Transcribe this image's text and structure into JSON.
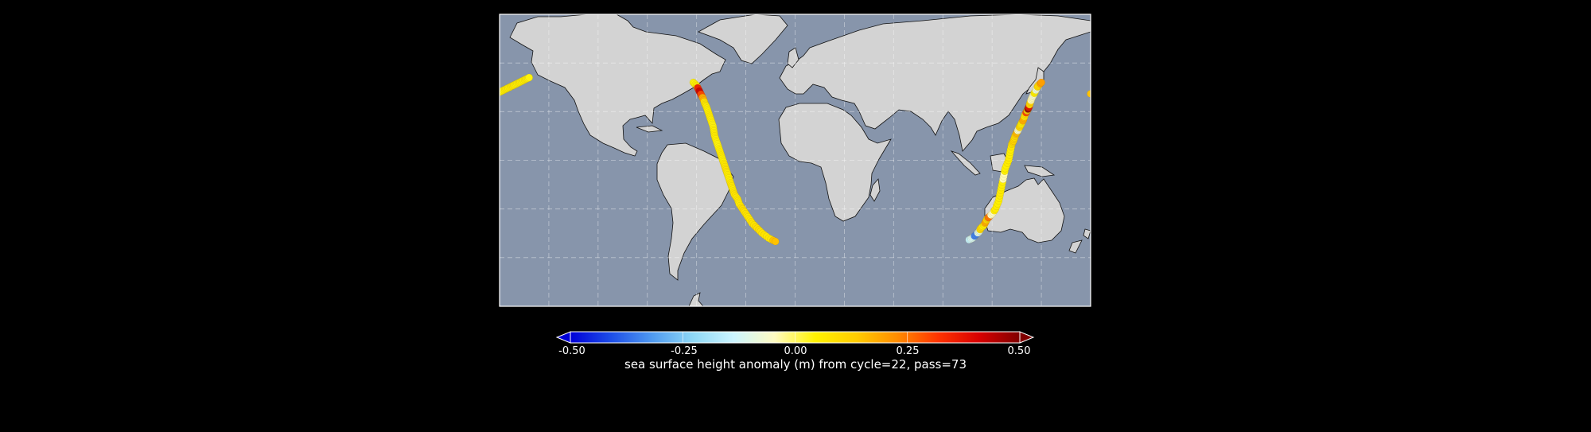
{
  "map": {
    "projection": "equirectangular",
    "ocean_color": "#8795ab",
    "land_color": "#d3d3d3",
    "coast_color": "#111111",
    "graticule": "dashed",
    "frame_color": "#ffffff"
  },
  "tracks": [
    {
      "points": [
        [
          -180,
          42,
          0.05
        ],
        [
          -178,
          43,
          0.05
        ],
        [
          -176,
          44,
          0.06
        ],
        [
          -174,
          45,
          0.05
        ],
        [
          -172,
          46,
          0.07
        ],
        [
          -170,
          47,
          0.05
        ],
        [
          -168,
          48,
          0.06
        ],
        [
          -166,
          49,
          0.05
        ],
        [
          -164,
          50,
          0.06
        ],
        [
          -162,
          51,
          0.04
        ]
      ]
    },
    {
      "points": [
        [
          -62,
          48,
          0.04
        ],
        [
          -60,
          46,
          0.05
        ],
        [
          -59,
          44,
          0.35
        ],
        [
          -58,
          42,
          0.42
        ],
        [
          -57,
          40,
          0.3
        ],
        [
          -56,
          38,
          0.18
        ],
        [
          -55,
          35,
          0.08
        ],
        [
          -54,
          33,
          0.06
        ],
        [
          -53,
          30,
          0.05
        ],
        [
          -52,
          27,
          0.06
        ],
        [
          -51,
          24,
          0.05
        ],
        [
          -50,
          21,
          0.04
        ],
        [
          -49.5,
          18,
          0.05
        ],
        [
          -49,
          15,
          0.06
        ],
        [
          -48,
          12,
          0.05
        ],
        [
          -47,
          9,
          0.04
        ],
        [
          -46,
          6,
          0.05
        ],
        [
          -45,
          3,
          0.06
        ],
        [
          -44,
          0,
          0.05
        ],
        [
          -43,
          -3,
          0.07
        ],
        [
          -42,
          -6,
          0.08
        ],
        [
          -41,
          -9,
          0.06
        ],
        [
          -40,
          -12,
          0.05
        ],
        [
          -39,
          -15,
          0.07
        ],
        [
          -38,
          -18,
          0.06
        ],
        [
          -37,
          -21,
          0.08
        ],
        [
          -35,
          -24,
          0.07
        ],
        [
          -34,
          -27,
          0.06
        ],
        [
          -32,
          -30,
          0.09
        ],
        [
          -30,
          -33,
          0.08
        ],
        [
          -28,
          -36,
          0.07
        ],
        [
          -26,
          -39,
          0.08
        ],
        [
          -23,
          -42,
          0.09
        ],
        [
          -20,
          -45,
          0.08
        ],
        [
          -16,
          -48,
          0.07
        ],
        [
          -12,
          -50,
          0.15
        ]
      ]
    },
    {
      "points": [
        [
          106,
          -49,
          -0.15
        ],
        [
          108,
          -48,
          -0.12
        ],
        [
          110,
          -46,
          -0.35
        ],
        [
          112,
          -44,
          -0.1
        ],
        [
          113,
          -42,
          0.1
        ],
        [
          115,
          -40,
          0.05
        ],
        [
          116,
          -38,
          0.18
        ],
        [
          117,
          -36,
          0.1
        ],
        [
          118,
          -35,
          0.25
        ],
        [
          120,
          -33,
          -0.05
        ],
        [
          122,
          -30,
          0.06
        ],
        [
          124,
          -25,
          0.05
        ],
        [
          125,
          -20,
          0.06
        ],
        [
          126,
          -15,
          0.05
        ],
        [
          127,
          -10,
          -0.04
        ],
        [
          128,
          -5,
          0.05
        ],
        [
          130,
          0,
          0.06
        ],
        [
          131,
          5,
          0.05
        ],
        [
          132,
          10,
          0.08
        ],
        [
          133,
          12,
          0.12
        ],
        [
          134,
          15,
          0.1
        ],
        [
          135,
          17,
          0.16
        ],
        [
          136,
          19,
          -0.06
        ],
        [
          137,
          21,
          0.1
        ],
        [
          138,
          23,
          0.05
        ],
        [
          139,
          25,
          0.18
        ],
        [
          140,
          28,
          0.08
        ],
        [
          141,
          30,
          0.3
        ],
        [
          141.5,
          31,
          0.1
        ],
        [
          142,
          32,
          0.48
        ],
        [
          142.5,
          33,
          0.38
        ],
        [
          143,
          35,
          0.12
        ],
        [
          144,
          38,
          -0.04
        ],
        [
          145,
          40,
          -0.06
        ],
        [
          146,
          42,
          0.05
        ],
        [
          147,
          44,
          -0.08
        ],
        [
          148,
          46,
          0.1
        ],
        [
          150,
          48,
          0.2
        ]
      ]
    },
    {
      "points": [
        [
          180,
          41,
          0.15
        ]
      ]
    }
  ],
  "colorbar": {
    "min": -0.5,
    "max": 0.5,
    "colormap": [
      "#0000d8",
      "#1d4ee8",
      "#4f9af0",
      "#8ed8f6",
      "#ccf5ff",
      "#fffbc2",
      "#fff200",
      "#ffcc00",
      "#ff8c00",
      "#ff3300",
      "#d80000",
      "#800000"
    ],
    "ticks": [
      "-0.50",
      "-0.25",
      "0.00",
      "0.25",
      "0.50"
    ],
    "caption": "sea surface height anomaly (m) from cycle=22, pass=73"
  }
}
